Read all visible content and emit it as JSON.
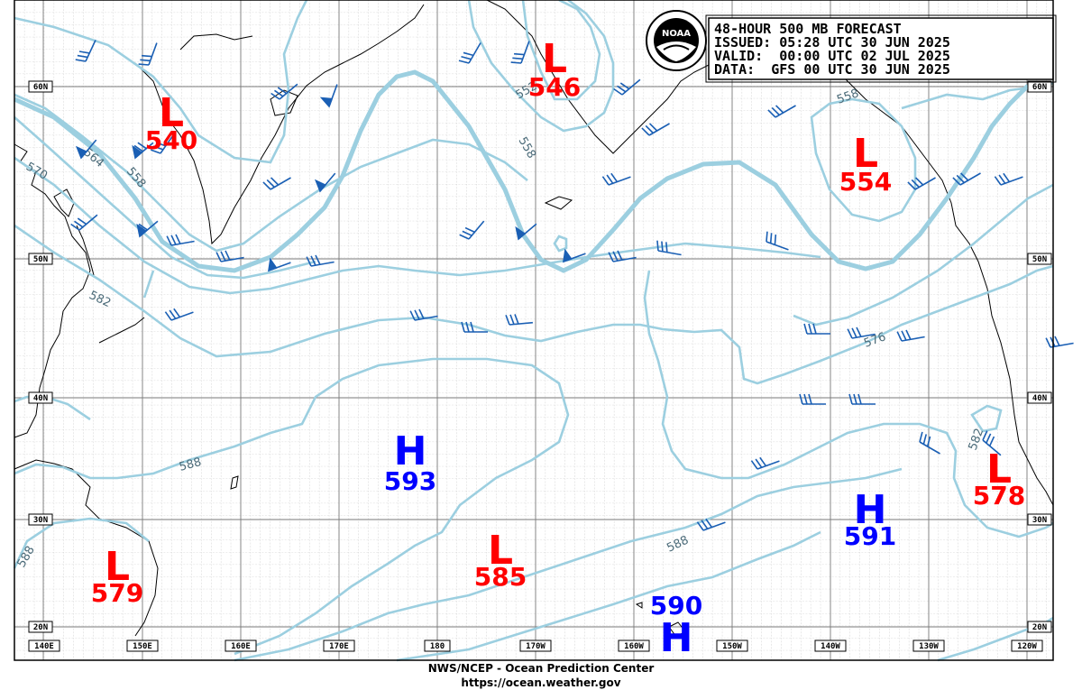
{
  "header": {
    "line1": "48-HOUR 500 MB FORECAST",
    "line2": "ISSUED: 05:28 UTC 30 JUN 2025",
    "line3": "VALID:  00:00 UTC 02 JUL 2025",
    "line4": "DATA:  GFS 00 UTC 30 JUN 2025"
  },
  "logo": {
    "text": "NOAA",
    "icon": "noaa-seal-icon"
  },
  "footer": {
    "org": "NWS/NCEP - Ocean Prediction Center",
    "url": "https://ocean.weather.gov"
  },
  "lat_labels": [
    "60N",
    "50N",
    "40N",
    "30N",
    "20N"
  ],
  "lon_labels": [
    "140E",
    "150E",
    "160E",
    "170E",
    "180",
    "170W",
    "160W",
    "150W",
    "140W",
    "130W",
    "120W"
  ],
  "pressure_systems": [
    {
      "type": "L",
      "value": "540",
      "color": "#ff0000"
    },
    {
      "type": "L",
      "value": "546",
      "color": "#ff0000"
    },
    {
      "type": "L",
      "value": "554",
      "color": "#ff0000"
    },
    {
      "type": "L",
      "value": "578",
      "color": "#ff0000"
    },
    {
      "type": "L",
      "value": "579",
      "color": "#ff0000"
    },
    {
      "type": "L",
      "value": "585",
      "color": "#ff0000"
    },
    {
      "type": "H",
      "value": "593",
      "color": "#0000ff"
    },
    {
      "type": "H",
      "value": "591",
      "color": "#0000ff"
    },
    {
      "type": "H",
      "value": "590",
      "color": "#0000ff"
    }
  ],
  "contour_labels": [
    "570",
    "564",
    "558",
    "552",
    "558",
    "558",
    "582",
    "576",
    "582",
    "588",
    "588",
    "588"
  ],
  "colors": {
    "contour": "#9ccfe0",
    "barb": "#1a5fb4",
    "grid": "#808080",
    "low": "#ff0000",
    "high": "#0000ff"
  }
}
